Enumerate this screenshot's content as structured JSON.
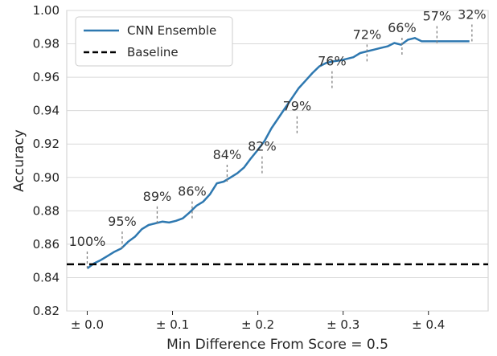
{
  "chart_data": {
    "type": "line",
    "xlabel": "Min Difference From Score = 0.5",
    "ylabel": "Accuracy",
    "xlim": [
      -0.024,
      0.47
    ],
    "ylim": [
      0.82,
      1.0
    ],
    "grid": true,
    "legend_position": "top-left",
    "x_ticks": [
      {
        "value": 0.0,
        "label": "± 0.0"
      },
      {
        "value": 0.1,
        "label": "± 0.1"
      },
      {
        "value": 0.2,
        "label": "± 0.2"
      },
      {
        "value": 0.3,
        "label": "± 0.3"
      },
      {
        "value": 0.4,
        "label": "± 0.4"
      }
    ],
    "y_ticks": [
      {
        "value": 0.82,
        "label": "0.82"
      },
      {
        "value": 0.84,
        "label": "0.84"
      },
      {
        "value": 0.86,
        "label": "0.86"
      },
      {
        "value": 0.88,
        "label": "0.88"
      },
      {
        "value": 0.9,
        "label": "0.90"
      },
      {
        "value": 0.92,
        "label": "0.92"
      },
      {
        "value": 0.94,
        "label": "0.94"
      },
      {
        "value": 0.96,
        "label": "0.96"
      },
      {
        "value": 0.98,
        "label": "0.98"
      },
      {
        "value": 1.0,
        "label": "1.00"
      }
    ],
    "series": [
      {
        "name": "CNN Ensemble",
        "color": "#2e78b0",
        "style": "solid",
        "x": [
          0.0,
          0.008,
          0.016,
          0.024,
          0.032,
          0.04,
          0.048,
          0.056,
          0.064,
          0.072,
          0.08,
          0.088,
          0.096,
          0.104,
          0.112,
          0.12,
          0.128,
          0.136,
          0.144,
          0.152,
          0.16,
          0.168,
          0.176,
          0.184,
          0.192,
          0.2,
          0.208,
          0.216,
          0.224,
          0.232,
          0.24,
          0.248,
          0.256,
          0.264,
          0.272,
          0.28,
          0.288,
          0.296,
          0.304,
          0.312,
          0.32,
          0.328,
          0.336,
          0.344,
          0.352,
          0.36,
          0.368,
          0.376,
          0.384,
          0.392,
          0.4,
          0.408,
          0.416,
          0.424,
          0.432,
          0.44,
          0.448
        ],
        "y": [
          0.8455,
          0.8485,
          0.8505,
          0.853,
          0.8555,
          0.8575,
          0.8615,
          0.8645,
          0.869,
          0.8715,
          0.8725,
          0.8735,
          0.873,
          0.874,
          0.8755,
          0.879,
          0.883,
          0.8855,
          0.89,
          0.8965,
          0.8975,
          0.9,
          0.9025,
          0.906,
          0.9115,
          0.9165,
          0.922,
          0.9295,
          0.9355,
          0.9415,
          0.9475,
          0.9535,
          0.958,
          0.9625,
          0.9665,
          0.9685,
          0.9695,
          0.97,
          0.971,
          0.972,
          0.9745,
          0.9755,
          0.9765,
          0.9775,
          0.9785,
          0.9805,
          0.9795,
          0.9825,
          0.9835,
          0.9815,
          0.9815,
          0.9815,
          0.9815,
          0.9815,
          0.9815,
          0.9815,
          0.9815
        ]
      },
      {
        "name": "Baseline",
        "color": "#000000",
        "style": "dashed",
        "y_constant": 0.848
      }
    ],
    "annotations": [
      {
        "x": 0.0,
        "y": 0.8455,
        "label": "100%"
      },
      {
        "x": 0.041,
        "y": 0.8575,
        "label": "95%"
      },
      {
        "x": 0.082,
        "y": 0.8725,
        "label": "89%"
      },
      {
        "x": 0.123,
        "y": 0.8755,
        "label": "86%"
      },
      {
        "x": 0.164,
        "y": 0.8975,
        "label": "84%"
      },
      {
        "x": 0.205,
        "y": 0.9025,
        "label": "82%"
      },
      {
        "x": 0.246,
        "y": 0.9265,
        "label": "79%"
      },
      {
        "x": 0.287,
        "y": 0.9535,
        "label": "76%"
      },
      {
        "x": 0.328,
        "y": 0.9695,
        "label": "72%"
      },
      {
        "x": 0.369,
        "y": 0.9735,
        "label": "66%"
      },
      {
        "x": 0.41,
        "y": 0.9805,
        "label": "57%"
      },
      {
        "x": 0.451,
        "y": 0.9815,
        "label": "32%"
      }
    ]
  }
}
